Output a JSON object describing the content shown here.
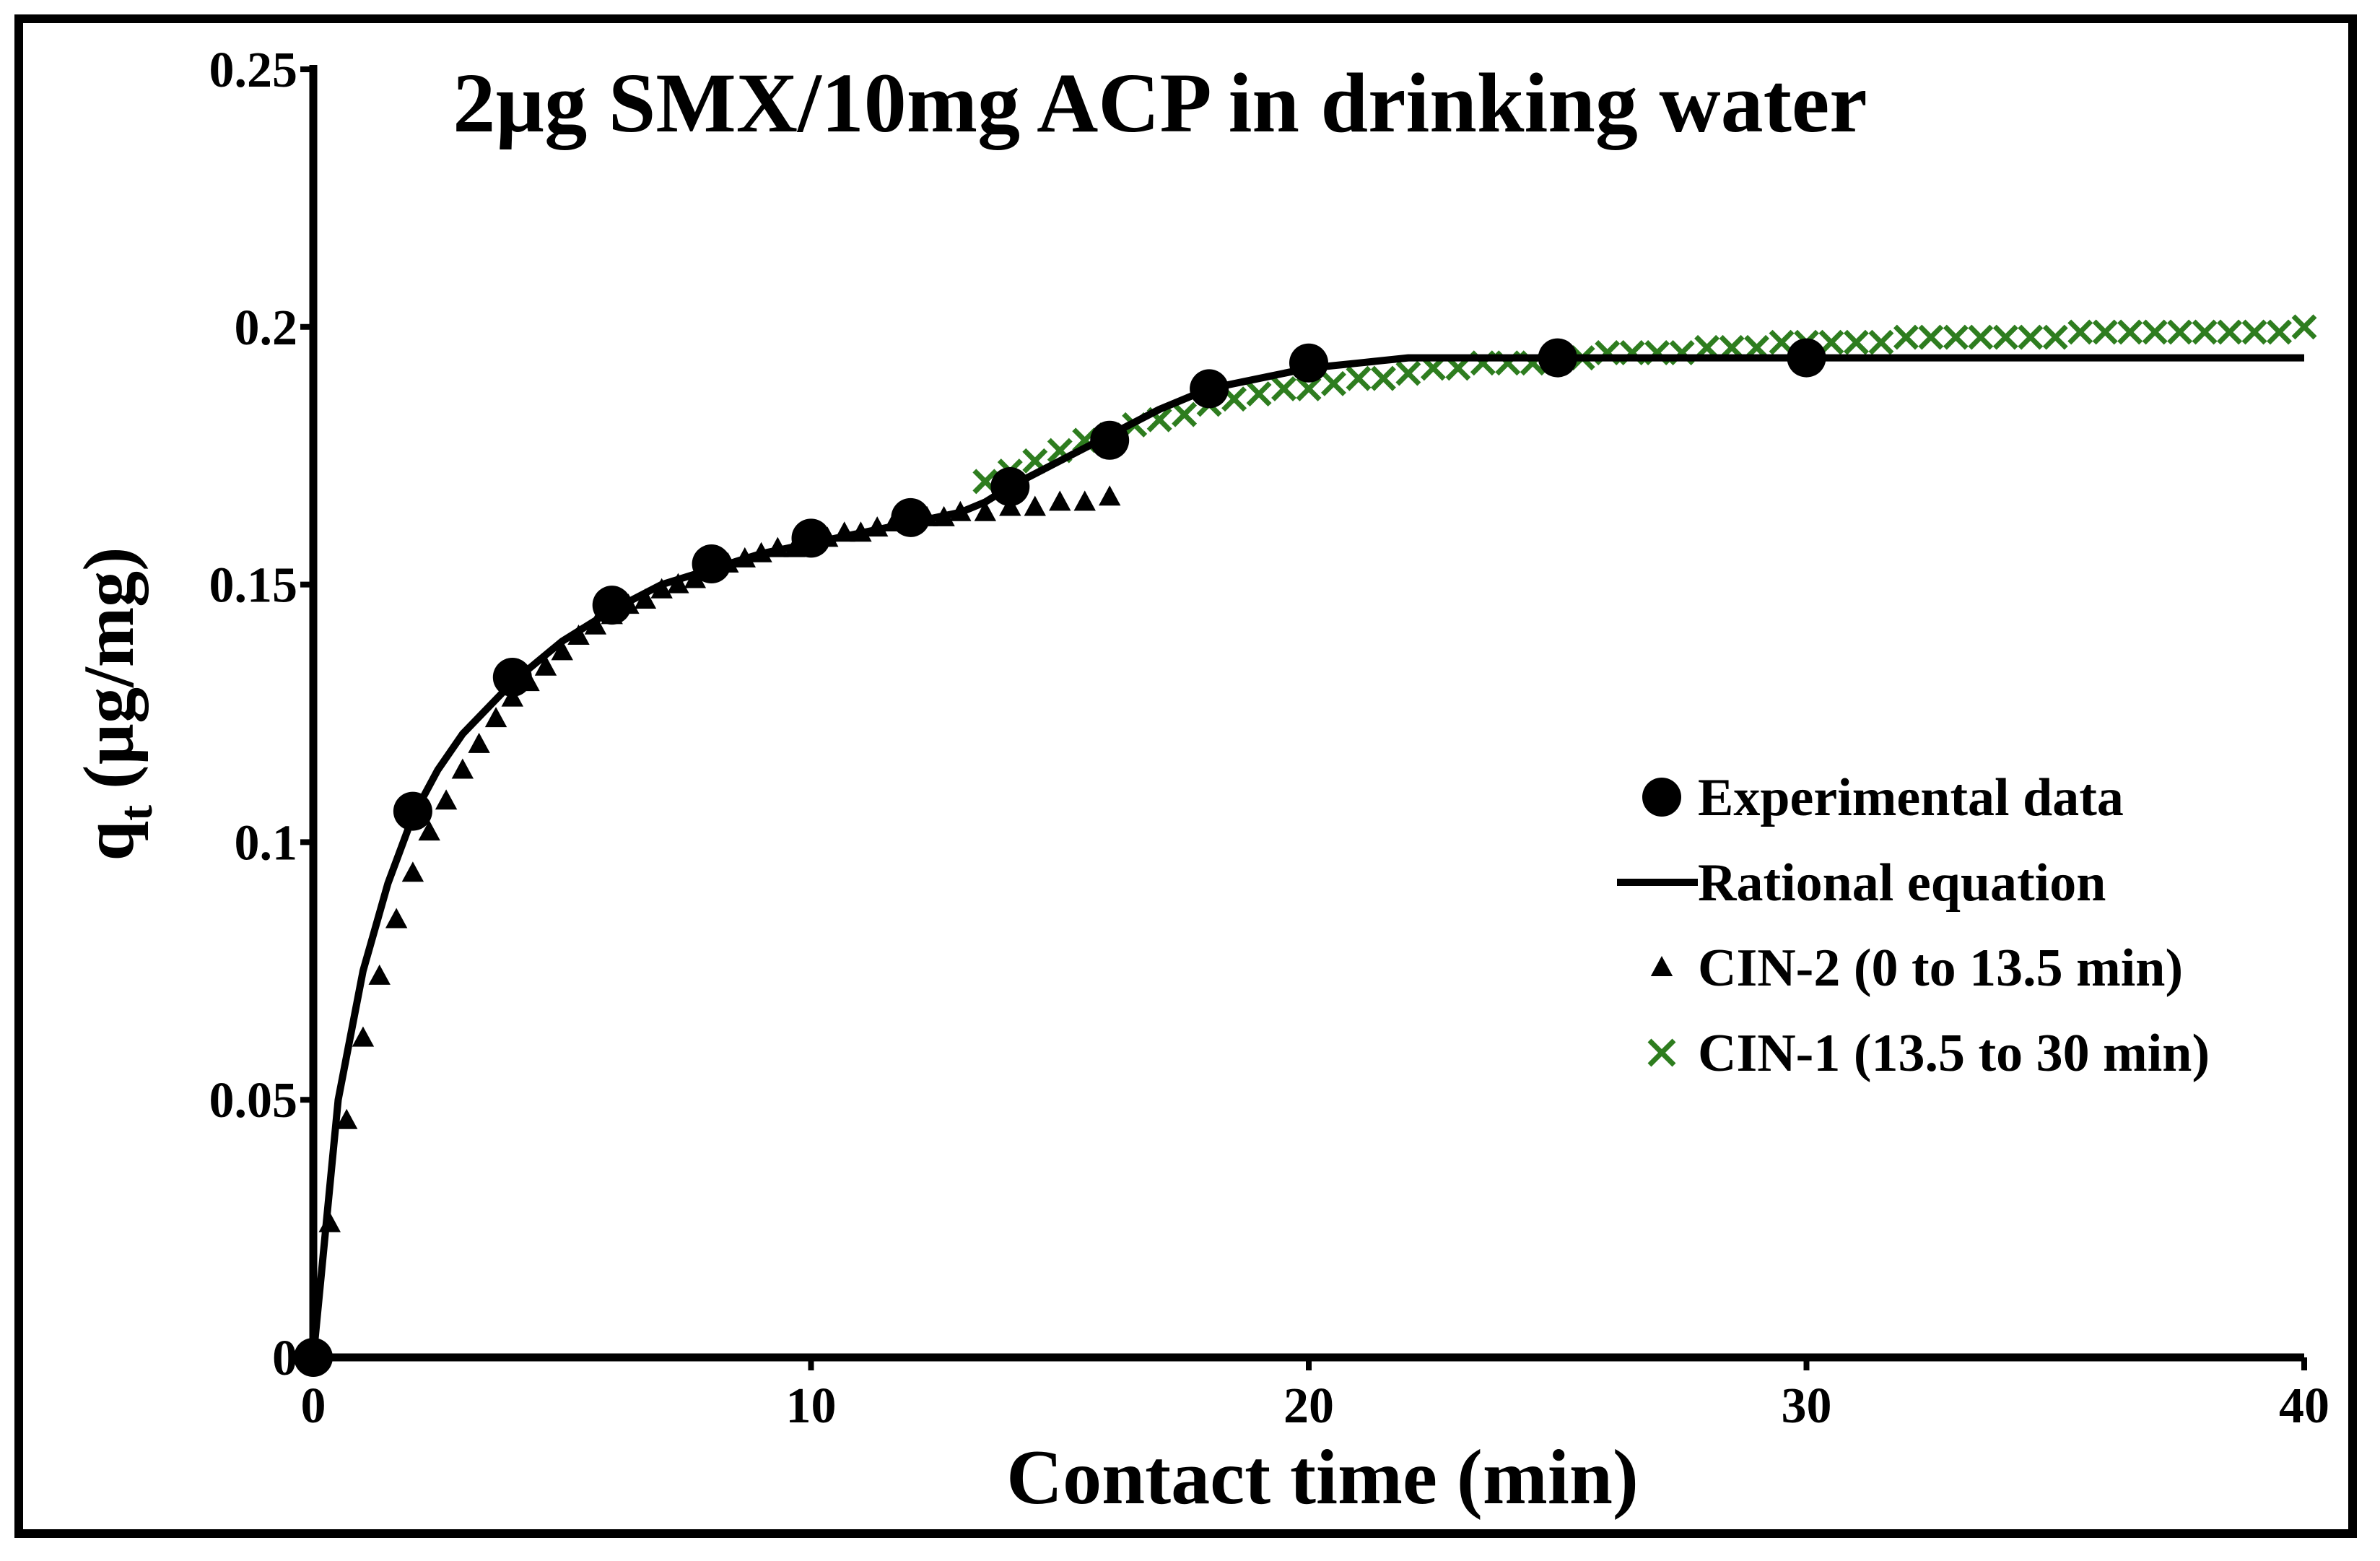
{
  "chart_data": {
    "type": "scatter",
    "title": "2µg SMX/10mg ACP in drinking water",
    "xlabel": "Contact time (min)",
    "ylabel_main": "q",
    "ylabel_sub": "t",
    "ylabel_unit": "(µg/mg)",
    "xlim": [
      0,
      40
    ],
    "ylim": [
      0,
      0.25
    ],
    "x_ticks": [
      0,
      10,
      20,
      30,
      40
    ],
    "x_tick_labels": [
      "0",
      "10",
      "20",
      "30",
      "40"
    ],
    "y_ticks": [
      0,
      0.05,
      0.1,
      0.15,
      0.2,
      0.25
    ],
    "y_tick_labels": [
      "0",
      "0.05",
      "0.1",
      "0.15",
      "0.2",
      "0.25"
    ],
    "grid": false,
    "legend_position": "center-right",
    "series": [
      {
        "name": "Experimental data",
        "marker": "circle",
        "color": "#000000",
        "x": [
          0,
          2,
          4,
          6,
          8,
          10,
          12,
          14,
          16,
          18,
          20,
          25,
          30
        ],
        "y": [
          0,
          0.106,
          0.132,
          0.146,
          0.154,
          0.159,
          0.163,
          0.169,
          0.178,
          0.188,
          0.193,
          0.194,
          0.194
        ]
      },
      {
        "name": "Rational equation",
        "marker": "line",
        "color": "#000000",
        "x": [
          0,
          0.5,
          1,
          1.5,
          2,
          2.5,
          3,
          4,
          5,
          6,
          7,
          8,
          9,
          10,
          11,
          12,
          13,
          13.5,
          14,
          15,
          16,
          17,
          18,
          19,
          20,
          21,
          22,
          23,
          25,
          30,
          35,
          40
        ],
        "y": [
          0,
          0.05,
          0.075,
          0.092,
          0.105,
          0.114,
          0.121,
          0.131,
          0.139,
          0.145,
          0.15,
          0.153,
          0.156,
          0.158,
          0.16,
          0.162,
          0.164,
          0.166,
          0.169,
          0.174,
          0.179,
          0.184,
          0.188,
          0.19,
          0.192,
          0.193,
          0.194,
          0.194,
          0.194,
          0.194,
          0.194,
          0.194
        ]
      },
      {
        "name": "CIN-2 (0 to 13.5 min)",
        "marker": "triangle",
        "color": "#000000",
        "x": [
          0,
          0.33,
          0.67,
          1.0,
          1.33,
          1.67,
          2.0,
          2.33,
          2.67,
          3.0,
          3.33,
          3.67,
          4.0,
          4.33,
          4.67,
          5.0,
          5.33,
          5.67,
          6.0,
          6.33,
          6.67,
          7.0,
          7.33,
          7.67,
          8.0,
          8.33,
          8.67,
          9.0,
          9.33,
          9.67,
          10.0,
          10.33,
          10.67,
          11.0,
          11.33,
          11.67,
          12.0,
          12.33,
          12.67,
          13.0,
          13.5,
          14.0,
          14.5,
          15.0,
          15.5,
          16.0
        ],
        "y": [
          0,
          0.026,
          0.046,
          0.062,
          0.074,
          0.085,
          0.094,
          0.102,
          0.108,
          0.114,
          0.119,
          0.124,
          0.128,
          0.131,
          0.134,
          0.137,
          0.14,
          0.142,
          0.144,
          0.146,
          0.147,
          0.149,
          0.15,
          0.151,
          0.153,
          0.154,
          0.155,
          0.156,
          0.157,
          0.157,
          0.158,
          0.159,
          0.16,
          0.16,
          0.161,
          0.162,
          0.162,
          0.163,
          0.163,
          0.164,
          0.164,
          0.165,
          0.165,
          0.166,
          0.166,
          0.167
        ]
      },
      {
        "name": "CIN-1 (13.5 to 30 min)",
        "marker": "x",
        "color": "#2e7d1f",
        "x": [
          13.5,
          14,
          14.5,
          15,
          15.5,
          16,
          16.5,
          17,
          17.5,
          18,
          18.5,
          19,
          19.5,
          20,
          20.5,
          21,
          21.5,
          22,
          22.5,
          23,
          23.5,
          24,
          24.5,
          25,
          25.5,
          26,
          26.5,
          27,
          27.5,
          28,
          28.5,
          29,
          29.5,
          30,
          30.5,
          31,
          31.5,
          32,
          32.5,
          33,
          33.5,
          34,
          34.5,
          35,
          35.5,
          36,
          36.5,
          37,
          37.5,
          38,
          38.5,
          39,
          39.5,
          40
        ],
        "y": [
          0.17,
          0.172,
          0.174,
          0.176,
          0.178,
          0.179,
          0.181,
          0.182,
          0.183,
          0.185,
          0.186,
          0.187,
          0.188,
          0.188,
          0.189,
          0.19,
          0.19,
          0.191,
          0.192,
          0.192,
          0.193,
          0.193,
          0.193,
          0.194,
          0.194,
          0.195,
          0.195,
          0.195,
          0.195,
          0.196,
          0.196,
          0.196,
          0.197,
          0.197,
          0.197,
          0.197,
          0.197,
          0.198,
          0.198,
          0.198,
          0.198,
          0.198,
          0.198,
          0.198,
          0.199,
          0.199,
          0.199,
          0.199,
          0.199,
          0.199,
          0.199,
          0.199,
          0.199,
          0.2
        ]
      }
    ]
  }
}
